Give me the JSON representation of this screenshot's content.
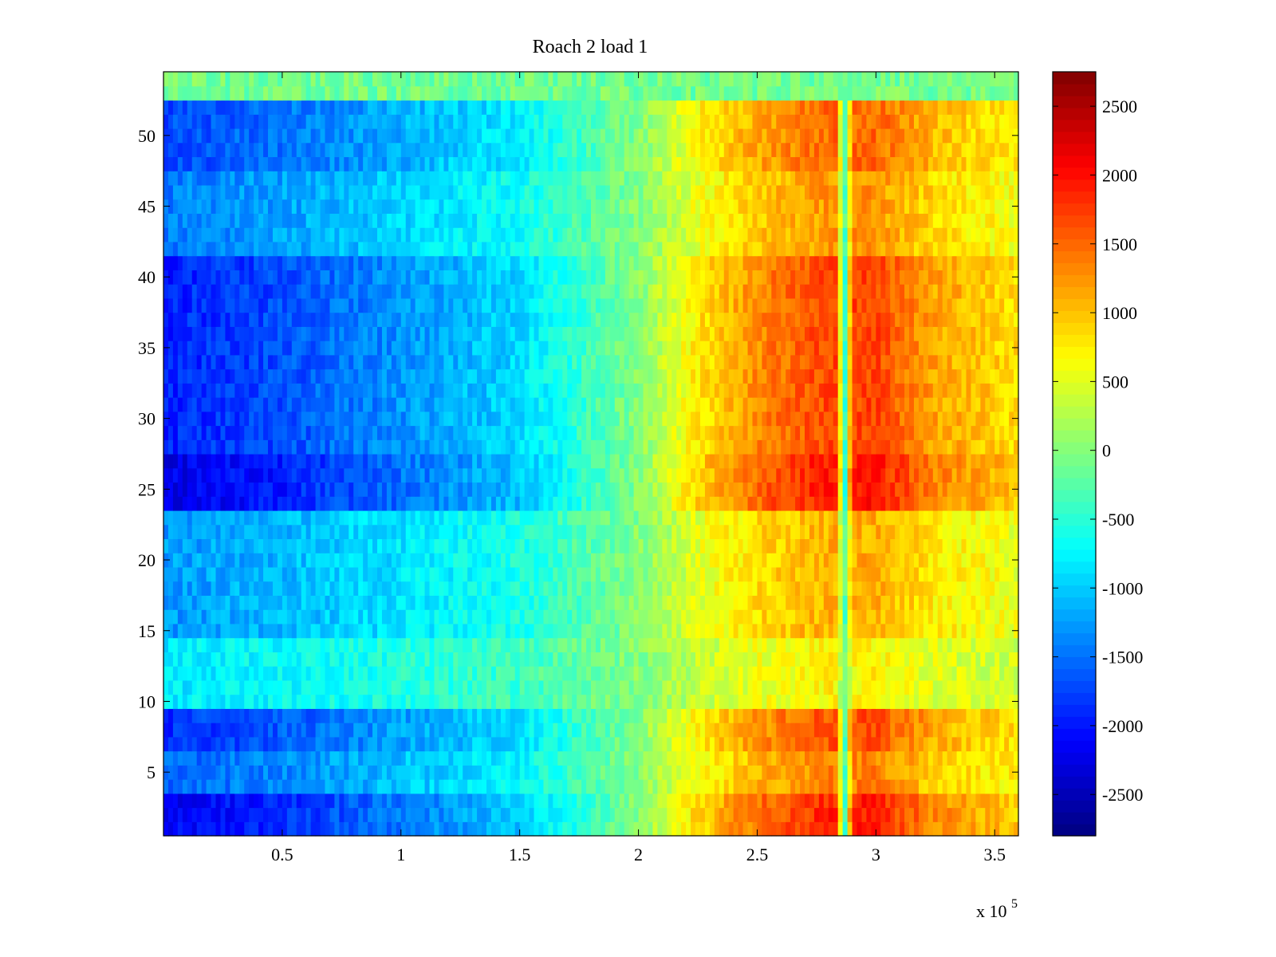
{
  "chart_data": {
    "type": "heatmap",
    "title": "Roach 2 load 1",
    "xlabel": "",
    "ylabel": "",
    "x_exponent_label": "x 10",
    "x_exponent_power": "5",
    "xlim": [
      0,
      3.6
    ],
    "ylim": [
      0.5,
      54.5
    ],
    "x_ticks": [
      0.5,
      1,
      1.5,
      2,
      2.5,
      3,
      3.5
    ],
    "x_tick_labels": [
      "0.5",
      "1",
      "1.5",
      "2",
      "2.5",
      "3",
      "3.5"
    ],
    "y_ticks": [
      5,
      10,
      15,
      20,
      25,
      30,
      35,
      40,
      45,
      50
    ],
    "y_tick_labels": [
      "5",
      "10",
      "15",
      "20",
      "25",
      "30",
      "35",
      "40",
      "45",
      "50"
    ],
    "rows": 54,
    "colormap": "jet",
    "clim": [
      -2800,
      2750
    ],
    "colorbar_ticks": [
      2500,
      2000,
      1500,
      1000,
      500,
      0,
      -500,
      -1000,
      -1500,
      -2000,
      -2500
    ],
    "colorbar_tick_labels": [
      "2500",
      "2000",
      "1500",
      "1000",
      "500",
      "0",
      "-500",
      "-1000",
      "-1500",
      "-2000",
      "-2500"
    ],
    "value_profile": {
      "description_units": "x in 1e5, value in colorbar units",
      "x": [
        0.0,
        0.5,
        1.0,
        1.5,
        2.0,
        2.25,
        2.5,
        2.75,
        2.83,
        2.87,
        2.9,
        3.0,
        3.25,
        3.6
      ],
      "value": [
        -1500,
        -1300,
        -1000,
        -700,
        0,
        600,
        1000,
        1250,
        1300,
        -300,
        1300,
        1300,
        900,
        650
      ]
    },
    "row_strength": {
      "description_units": "relative amplitude multiplier per row group",
      "rows": [
        [
          1,
          3,
          1.45
        ],
        [
          4,
          6,
          1.05
        ],
        [
          7,
          9,
          1.25
        ],
        [
          10,
          14,
          0.55
        ],
        [
          15,
          23,
          0.85
        ],
        [
          24,
          27,
          1.5
        ],
        [
          28,
          32,
          1.3
        ],
        [
          33,
          41,
          1.3
        ],
        [
          42,
          47,
          0.95
        ],
        [
          48,
          52,
          1.15
        ],
        [
          53,
          54,
          0.0
        ]
      ]
    }
  }
}
